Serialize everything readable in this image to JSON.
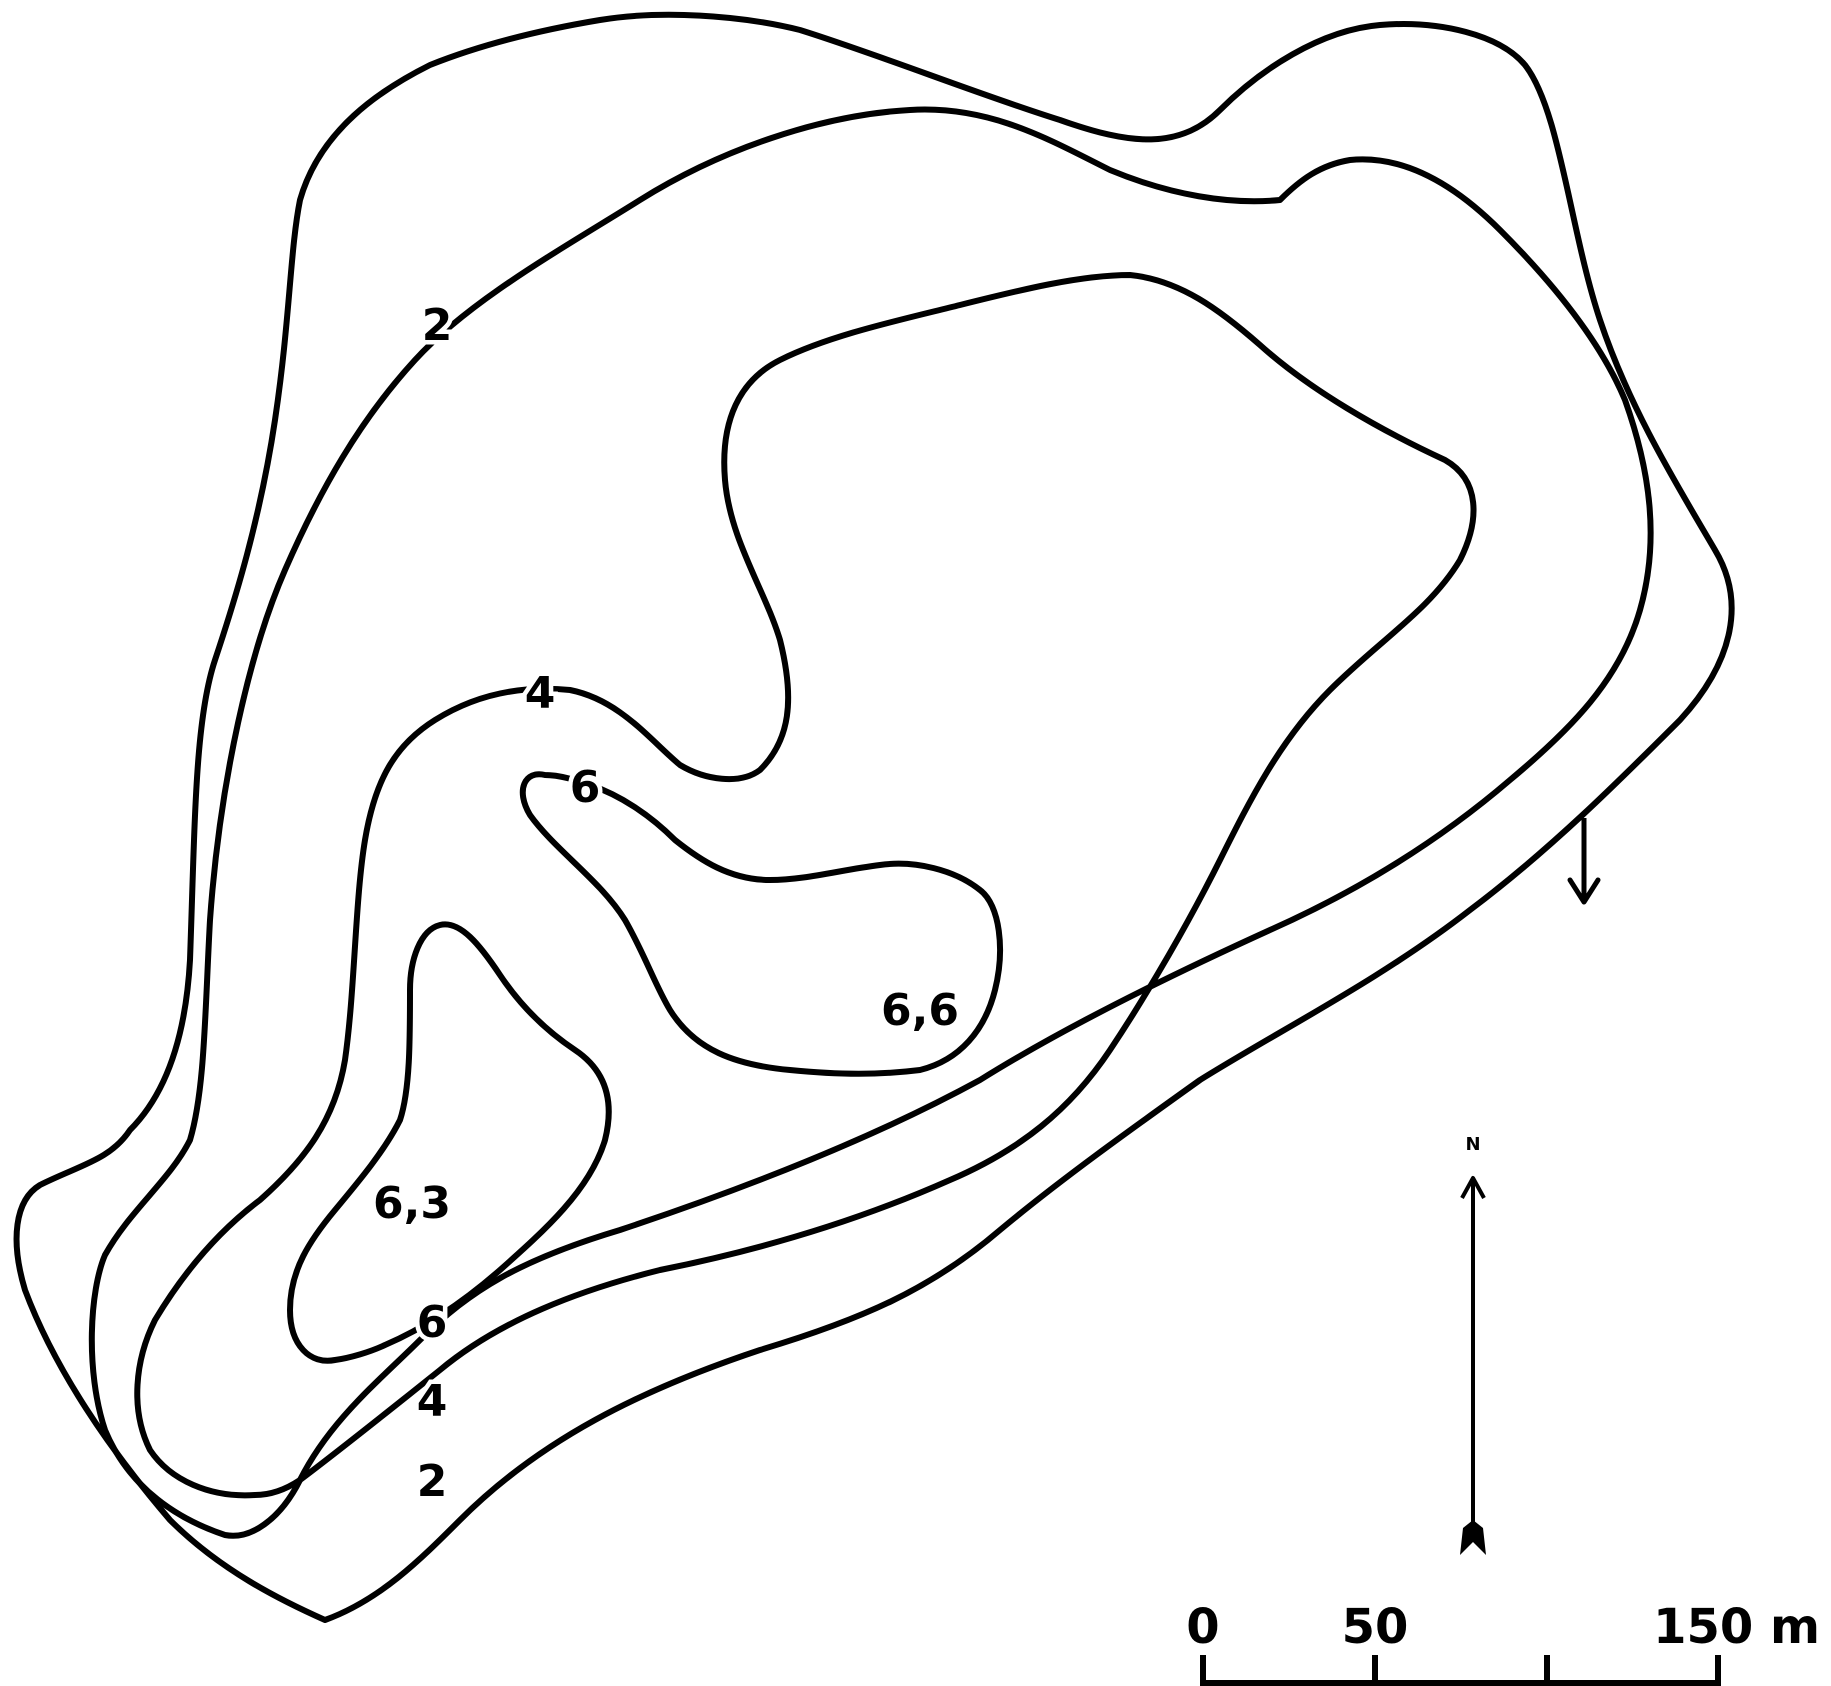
{
  "colors": {
    "zone_0_2": "#e8f7f9",
    "zone_2_4": "#9beced",
    "zone_4_6": "#5ccbe6",
    "zone_6_plus": "#0a80ea",
    "outline": "#000000"
  },
  "depth_labels": {
    "contour_2_north": "2",
    "contour_2_south": "2",
    "contour_4_west": "4",
    "contour_4_south": "4",
    "contour_6_north": "6",
    "contour_6_south": "6",
    "max_depth_south": "6,3",
    "max_depth_east": "6,6"
  },
  "north_arrow": {
    "label": "N",
    "icon": "north-arrow-icon"
  },
  "outflow": {
    "icon": "outflow-arrow-icon"
  },
  "scale_bar": {
    "label_0": "0",
    "label_50": "50",
    "label_150": "150 m"
  }
}
